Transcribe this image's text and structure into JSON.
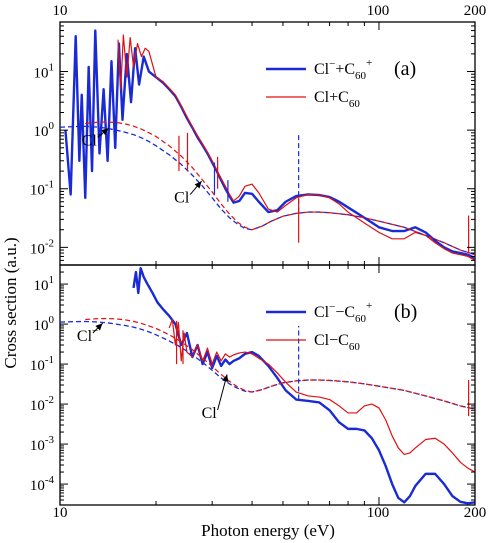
{
  "figure": {
    "xlabel": "Photon energy (eV)",
    "ylabel": "Cross section (a.u.)",
    "xticks_top": [
      "10",
      "100",
      "200"
    ],
    "xticks_bottom": [
      "10",
      "100",
      "200"
    ]
  },
  "chart_data": [
    {
      "type": "line",
      "panel_label": "(a)",
      "x_scale": "log",
      "y_scale": "log",
      "xlim": [
        10,
        200
      ],
      "ylim": [
        0.005,
        70
      ],
      "yticks": [
        0.01,
        0.1,
        1,
        10
      ],
      "ytick_labels": [
        {
          "base": "10",
          "exp": "-2"
        },
        {
          "base": "10",
          "exp": "-1"
        },
        {
          "base": "10",
          "exp": "0"
        },
        {
          "base": "10",
          "exp": "1"
        }
      ],
      "legend": {
        "position": "top-right",
        "entries": [
          {
            "parts": [
              "Cl",
              "−",
              "+C",
              "60",
              "+"
            ],
            "color": "#1a2bd6"
          },
          {
            "parts": [
              "Cl+C",
              "60"
            ],
            "color": "#e01010"
          }
        ]
      },
      "annotations": [
        {
          "text": "Cl",
          "sup": "−",
          "label_at": [
            11.7,
            0.55
          ],
          "arrow_to": [
            14.2,
            1.08
          ]
        },
        {
          "text": "Cl",
          "sup": "",
          "label_at": [
            22.8,
            0.058
          ],
          "arrow_to": [
            27.8,
            0.135
          ]
        }
      ],
      "series": [
        {
          "name": "Cl−+C60+ (full)",
          "color": "#1a2bd6",
          "width": 2.4,
          "dash": false,
          "x": [
            10.4,
            10.8,
            11.2,
            11.5,
            11.7,
            12.0,
            12.3,
            12.6,
            12.9,
            13.3,
            13.7,
            14.1,
            14.5,
            14.9,
            15.3,
            15.7,
            16.2,
            16.7,
            17.2,
            17.7,
            18.3,
            19.0,
            20.0,
            21.0,
            22.0,
            23.0,
            24.0,
            25.0,
            26.0,
            27.0,
            28.0,
            29.0,
            30.0,
            31.0,
            32.0,
            33.0,
            34.0,
            35.0,
            36.5,
            38.0,
            40.0,
            42.0,
            45.0,
            48.0,
            51.0,
            55.0,
            60.0,
            65.0,
            70.0,
            75.0,
            80.0,
            90.0,
            100.0,
            110.0,
            120.0,
            130.0,
            140.0,
            150.0,
            160.0,
            170.0,
            180.0,
            190.0,
            200.0
          ],
          "y": [
            1.0,
            0.08,
            40.0,
            0.3,
            4.0,
            0.07,
            12.0,
            0.2,
            50.0,
            0.4,
            5.0,
            0.3,
            15.0,
            0.5,
            30.0,
            1.5,
            20.0,
            3.0,
            25.0,
            6.0,
            18.0,
            10.0,
            8.0,
            6.5,
            5.0,
            3.8,
            2.5,
            1.6,
            1.1,
            0.75,
            0.55,
            0.4,
            0.28,
            0.2,
            0.14,
            0.1,
            0.075,
            0.058,
            0.062,
            0.085,
            0.082,
            0.06,
            0.04,
            0.043,
            0.06,
            0.075,
            0.08,
            0.078,
            0.072,
            0.06,
            0.048,
            0.032,
            0.022,
            0.019,
            0.019,
            0.022,
            0.018,
            0.013,
            0.01,
            0.0085,
            0.008,
            0.0075,
            0.0065
          ]
        },
        {
          "name": "Cl+C60 (full)",
          "color": "#e01010",
          "width": 1.2,
          "dash": false,
          "x": [
            15.2,
            15.5,
            15.8,
            16.2,
            16.6,
            17.0,
            17.5,
            18.0,
            18.5,
            19.0,
            20.0,
            21.0,
            22.0,
            23.0,
            24.0,
            25.0,
            26.0,
            27.0,
            28.0,
            29.0,
            30.0,
            31.0,
            32.0,
            33.0,
            34.0,
            35.0,
            36.5,
            38.0,
            40.0,
            42.0,
            45.0,
            48.0,
            51.0,
            55.0,
            60.0,
            65.0,
            70.0,
            75.0,
            80.0,
            90.0,
            100.0,
            110.0,
            120.0,
            130.0,
            140.0,
            150.0,
            160.0,
            170.0,
            180.0,
            190.0,
            200.0
          ],
          "y": [
            35.0,
            5.0,
            42.0,
            8.0,
            38.0,
            12.0,
            30.0,
            18.0,
            25.0,
            22.0,
            8.0,
            6.8,
            5.2,
            4.0,
            2.6,
            1.7,
            1.15,
            0.8,
            0.58,
            0.42,
            0.3,
            0.21,
            0.15,
            0.11,
            0.08,
            0.062,
            0.075,
            0.11,
            0.12,
            0.085,
            0.045,
            0.04,
            0.052,
            0.07,
            0.08,
            0.078,
            0.07,
            0.055,
            0.04,
            0.026,
            0.018,
            0.014,
            0.014,
            0.018,
            0.016,
            0.012,
            0.0095,
            0.008,
            0.0075,
            0.007,
            0.006
          ]
        },
        {
          "name": "Cl− (free)",
          "color": "#1a2bd6",
          "width": 1.3,
          "dash": true,
          "x": [
            10.0,
            11.0,
            12.0,
            13.0,
            14.0,
            15.0,
            16.0,
            17.0,
            18.0,
            19.0,
            20.0,
            22.0,
            24.0,
            26.0,
            28.0,
            30.0,
            32.0,
            34.0,
            36.0,
            38.0,
            40.0,
            43.0,
            46.0,
            50.0,
            55.0,
            60.0,
            65.0,
            70.0,
            80.0,
            90.0,
            100.0,
            120.0,
            140.0,
            160.0,
            180.0,
            200.0
          ],
          "y": [
            1.12,
            1.15,
            1.16,
            1.13,
            1.08,
            1.0,
            0.92,
            0.84,
            0.74,
            0.64,
            0.54,
            0.38,
            0.26,
            0.17,
            0.11,
            0.07,
            0.045,
            0.032,
            0.025,
            0.021,
            0.02,
            0.023,
            0.028,
            0.034,
            0.038,
            0.04,
            0.04,
            0.039,
            0.036,
            0.032,
            0.028,
            0.022,
            0.016,
            0.012,
            0.009,
            0.0075
          ]
        },
        {
          "name": "Cl (free)",
          "color": "#e01010",
          "width": 1.2,
          "dash": true,
          "x": [
            12.0,
            13.0,
            14.0,
            15.0,
            16.0,
            17.0,
            18.0,
            19.0,
            20.0,
            22.0,
            24.0,
            26.0,
            28.0,
            30.0,
            32.0,
            34.0,
            36.0,
            38.0,
            40.0,
            43.0,
            46.0,
            50.0,
            55.0,
            60.0,
            65.0,
            70.0,
            80.0,
            90.0,
            100.0,
            120.0,
            140.0,
            160.0,
            180.0,
            200.0
          ],
          "y": [
            1.3,
            1.36,
            1.38,
            1.35,
            1.28,
            1.17,
            1.04,
            0.9,
            0.78,
            0.54,
            0.36,
            0.23,
            0.14,
            0.088,
            0.055,
            0.037,
            0.027,
            0.022,
            0.02,
            0.023,
            0.028,
            0.034,
            0.038,
            0.04,
            0.04,
            0.039,
            0.036,
            0.032,
            0.028,
            0.022,
            0.016,
            0.012,
            0.009,
            0.0075
          ]
        }
      ],
      "markers": [
        {
          "color": "#e01010",
          "x": 23.6,
          "from": 0.2,
          "to": 0.8
        },
        {
          "color": "#e01010",
          "x": 25.1,
          "from": 0.2,
          "to": 0.9
        },
        {
          "color": "#e01010",
          "x": 31.2,
          "from": 0.1,
          "to": 0.35
        },
        {
          "color": "#1a2bd6",
          "x": 30.5,
          "from": 0.08,
          "to": 0.28
        },
        {
          "color": "#1a2bd6",
          "x": 33.6,
          "from": 0.06,
          "to": 0.14
        },
        {
          "color": "#1a2bd6",
          "dash": true,
          "x": 56.0,
          "from": 0.04,
          "to": 0.9
        },
        {
          "color": "#e01010",
          "x": 56.0,
          "from": 0.012,
          "to": 0.07
        },
        {
          "color": "#e01010",
          "x": 191.0,
          "from": 0.008,
          "to": 0.035
        }
      ]
    },
    {
      "type": "line",
      "panel_label": "(b)",
      "x_scale": "log",
      "y_scale": "log",
      "xlim": [
        10,
        200
      ],
      "ylim": [
        3e-05,
        30
      ],
      "yticks": [
        0.0001,
        0.001,
        0.01,
        0.1,
        1,
        10
      ],
      "ytick_labels": [
        {
          "base": "10",
          "exp": "-4"
        },
        {
          "base": "10",
          "exp": "-3"
        },
        {
          "base": "10",
          "exp": "-2"
        },
        {
          "base": "10",
          "exp": "-1"
        },
        {
          "base": "10",
          "exp": "0"
        },
        {
          "base": "10",
          "exp": "1"
        }
      ],
      "legend": {
        "position": "top-right",
        "entries": [
          {
            "parts": [
              "Cl",
              "−",
              "−C",
              "60",
              "+"
            ],
            "color": "#1a2bd6"
          },
          {
            "parts": [
              "Cl−C",
              "60"
            ],
            "color": "#e01010"
          }
        ]
      },
      "annotations": [
        {
          "text": "Cl",
          "sup": "−",
          "label_at": [
            11.3,
            0.38
          ],
          "arrow_to": [
            13.6,
            1.05
          ]
        },
        {
          "text": "Cl",
          "sup": "",
          "label_at": [
            27.8,
            0.0045
          ],
          "arrow_to": [
            33.4,
            0.055
          ]
        }
      ],
      "series": [
        {
          "name": "Cl−−C60+ (full)",
          "color": "#1a2bd6",
          "width": 2.4,
          "dash": false,
          "x": [
            17.0,
            17.3,
            17.6,
            17.9,
            18.3,
            18.8,
            19.5,
            20.2,
            21.0,
            22.0,
            23.0,
            24.0,
            25.0,
            26.0,
            27.0,
            28.0,
            29.0,
            30.0,
            31.0,
            32.0,
            33.0,
            34.0,
            35.0,
            36.5,
            38.0,
            40.0,
            42.0,
            45.0,
            48.0,
            51.0,
            55.0,
            60.0,
            65.0,
            70.0,
            75.0,
            80.0,
            85.0,
            90.0,
            95.0,
            100.0,
            105.0,
            110.0,
            115.0,
            120.0,
            125.0,
            130.0,
            140.0,
            150.0,
            160.0,
            170.0,
            180.0,
            190.0,
            200.0
          ],
          "y": [
            8.0,
            20.0,
            6.0,
            25.0,
            15.0,
            10.0,
            6.0,
            3.5,
            2.4,
            1.6,
            1.0,
            0.3,
            0.6,
            0.15,
            0.3,
            0.1,
            0.2,
            0.08,
            0.16,
            0.09,
            0.13,
            0.1,
            0.12,
            0.14,
            0.18,
            0.2,
            0.16,
            0.09,
            0.045,
            0.022,
            0.013,
            0.012,
            0.011,
            0.007,
            0.0035,
            0.0024,
            0.0024,
            0.0022,
            0.0014,
            0.0007,
            0.00028,
            0.0001,
            4.5e-05,
            3.5e-05,
            5e-05,
            9e-05,
            0.00018,
            0.00018,
            0.0001,
            5e-05,
            3.6e-05,
            3.3e-05,
            3.5e-05
          ]
        },
        {
          "name": "Cl−C60 (full)",
          "color": "#e01010",
          "width": 1.2,
          "dash": false,
          "x": [
            22.0,
            22.5,
            23.0,
            23.5,
            24.0,
            24.5,
            25.0,
            26.0,
            27.0,
            28.0,
            29.0,
            30.0,
            31.0,
            32.0,
            33.0,
            34.0,
            35.0,
            36.5,
            38.0,
            40.0,
            42.0,
            45.0,
            48.0,
            51.0,
            55.0,
            60.0,
            65.0,
            70.0,
            75.0,
            80.0,
            85.0,
            90.0,
            95.0,
            100.0,
            105.0,
            110.0,
            115.0,
            120.0,
            125.0,
            130.0,
            140.0,
            150.0,
            160.0,
            170.0,
            180.0,
            190.0,
            200.0
          ],
          "y": [
            0.8,
            1.3,
            0.3,
            1.1,
            0.12,
            0.6,
            0.2,
            0.15,
            0.3,
            0.12,
            0.25,
            0.1,
            0.2,
            0.12,
            0.18,
            0.15,
            0.17,
            0.19,
            0.2,
            0.18,
            0.14,
            0.1,
            0.06,
            0.035,
            0.02,
            0.016,
            0.015,
            0.013,
            0.009,
            0.006,
            0.006,
            0.009,
            0.01,
            0.008,
            0.004,
            0.0016,
            0.0008,
            0.00055,
            0.0006,
            0.0008,
            0.0013,
            0.0014,
            0.001,
            0.0006,
            0.00035,
            0.00025,
            0.0002
          ]
        },
        {
          "name": "Cl− (free)",
          "color": "#1a2bd6",
          "width": 1.3,
          "dash": true,
          "x": [
            10.0,
            11.0,
            12.0,
            13.0,
            14.0,
            15.0,
            16.0,
            17.0,
            18.0,
            19.0,
            20.0,
            22.0,
            24.0,
            26.0,
            28.0,
            30.0,
            32.0,
            34.0,
            36.0,
            38.0,
            40.0,
            43.0,
            46.0,
            50.0,
            55.0,
            60.0,
            65.0,
            70.0,
            80.0,
            90.0,
            100.0,
            120.0,
            140.0,
            160.0,
            180.0,
            200.0
          ],
          "y": [
            1.12,
            1.15,
            1.16,
            1.13,
            1.08,
            1.0,
            0.92,
            0.84,
            0.74,
            0.64,
            0.54,
            0.38,
            0.26,
            0.17,
            0.11,
            0.07,
            0.045,
            0.032,
            0.025,
            0.021,
            0.02,
            0.023,
            0.028,
            0.034,
            0.038,
            0.04,
            0.04,
            0.039,
            0.036,
            0.032,
            0.028,
            0.022,
            0.016,
            0.012,
            0.009,
            0.0075
          ]
        },
        {
          "name": "Cl (free)",
          "color": "#e01010",
          "width": 1.2,
          "dash": true,
          "x": [
            12.0,
            13.0,
            14.0,
            15.0,
            16.0,
            17.0,
            18.0,
            19.0,
            20.0,
            22.0,
            24.0,
            26.0,
            28.0,
            30.0,
            32.0,
            34.0,
            36.0,
            38.0,
            40.0,
            43.0,
            46.0,
            50.0,
            55.0,
            60.0,
            65.0,
            70.0,
            80.0,
            90.0,
            100.0,
            120.0,
            140.0,
            160.0,
            180.0,
            200.0
          ],
          "y": [
            1.3,
            1.36,
            1.38,
            1.35,
            1.28,
            1.17,
            1.04,
            0.9,
            0.78,
            0.54,
            0.36,
            0.23,
            0.14,
            0.088,
            0.055,
            0.037,
            0.027,
            0.022,
            0.02,
            0.023,
            0.028,
            0.034,
            0.038,
            0.04,
            0.04,
            0.039,
            0.036,
            0.032,
            0.028,
            0.022,
            0.016,
            0.012,
            0.009,
            0.0075
          ]
        }
      ],
      "markers": [
        {
          "color": "#e01010",
          "x": 23.2,
          "from": 0.1,
          "to": 1.2
        },
        {
          "color": "#e01010",
          "x": 24.3,
          "from": 0.1,
          "to": 0.7
        },
        {
          "color": "#1a2bd6",
          "dash": true,
          "x": 56.0,
          "from": 0.013,
          "to": 0.9
        },
        {
          "color": "#e01010",
          "x": 191.0,
          "from": 0.005,
          "to": 0.04
        }
      ]
    }
  ]
}
